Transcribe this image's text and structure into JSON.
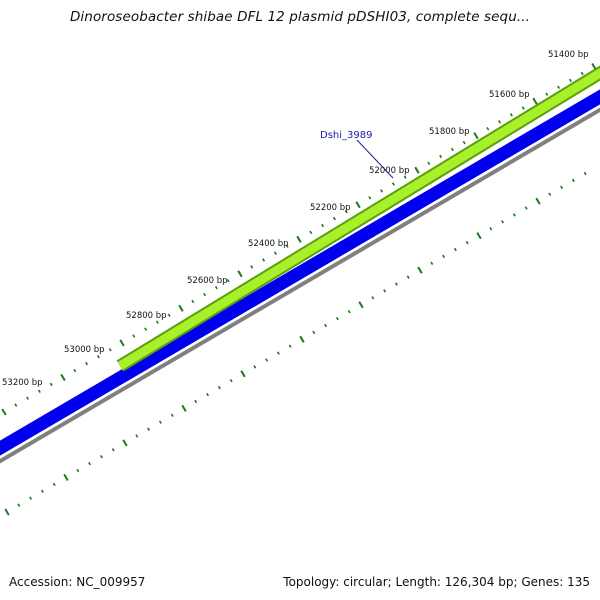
{
  "title": "Dinoroseobacter shibae DFL 12 plasmid pDSHI03, complete sequ...",
  "ticks": [
    {
      "label": "51400 bp"
    },
    {
      "label": "51600 bp"
    },
    {
      "label": "51800 bp"
    },
    {
      "label": "52000 bp"
    },
    {
      "label": "52200 bp"
    },
    {
      "label": "52400 bp"
    },
    {
      "label": "52600 bp"
    },
    {
      "label": "52800 bp"
    },
    {
      "label": "53000 bp"
    },
    {
      "label": "53200 bp"
    }
  ],
  "gene": {
    "label": "Dshi_3989"
  },
  "colors": {
    "gene_fill": "#a8f02a",
    "gene_outline": "#5aa010",
    "backbone": "#0000ee",
    "gc_line": "#808080",
    "tick_marks": "#1a7a1a",
    "gene_label": "#1a1aa6"
  },
  "footer": {
    "accession": "Accession: NC_009957",
    "summary": "Topology: circular; Length: 126,304 bp; Genes: 135"
  }
}
